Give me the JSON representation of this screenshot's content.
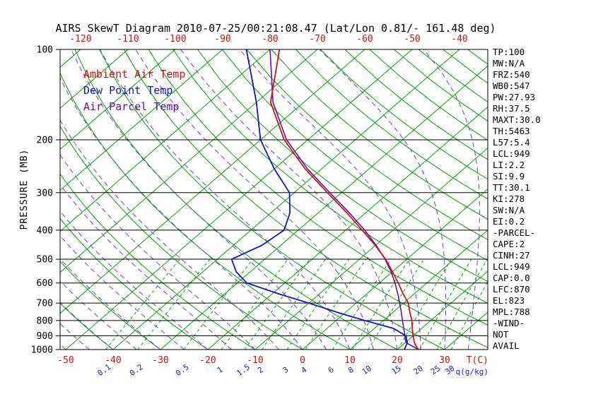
{
  "title": "AIRS SkewT Diagram 2010-07-25/00:21:08.47 (Lat/Lon 0.81/- 161.48 deg)",
  "legend": {
    "items": [
      {
        "label": "Ambient Air Temp",
        "color": "#d80f0f"
      },
      {
        "label": "Dew Point Temp",
        "color": "#1212cc"
      },
      {
        "label": "Air Parcel Temp",
        "color": "#5a10b8"
      }
    ]
  },
  "axes": {
    "y_label": "PRESSURE (MB)",
    "x_label_temp": "T(C)",
    "x_label_mixing": "q(g/kg)"
  },
  "stats": {
    "items": [
      "TP:100",
      "MW:N/A",
      "FRZ:540",
      "WB0:547",
      "PW:27.93",
      "RH:37.5",
      "MAXT:30.0",
      "TH:5463",
      "L57:5.4",
      "LCL:949",
      "LI:2.2",
      "SI:9.9",
      "TT:30.1",
      "KI:278",
      "SW:N/A",
      "EI:0.2",
      "-PARCEL-",
      "CAPE:2",
      "CINH:27",
      "LCL:949",
      "CAP:0.0",
      "LFC:870",
      "EL:823",
      "MPL:788",
      "-WIND-",
      "NOT",
      "AVAIL"
    ]
  },
  "colors": {
    "background": "#ffffff",
    "isotherm": "#00a400",
    "dry_adiabat": "#00a400",
    "moist_adiabat": "#7142c8",
    "mixing_ratio_line": "#00a400",
    "mixing_ratio_label": "#2020cc",
    "pressure_line": "#000000",
    "ambient": "#d80f0f",
    "dewpoint": "#1212cc",
    "parcel": "#5a10b8",
    "axis_text": "#000000"
  },
  "chart_data": {
    "type": "line",
    "title": "AIRS SkewT Diagram 2010-07-25/00:21:08.47 (Lat/Lon 0.81/- 161.48 deg)",
    "xlabel": "T(C)",
    "ylabel": "PRESSURE (MB)",
    "y_scale": "log",
    "ylim": [
      1000,
      100
    ],
    "xlim_temp_c": [
      -120,
      40
    ],
    "grid": "skew-t log-p",
    "legend_position": "upper-left-inside",
    "pressure_levels": [
      100,
      200,
      300,
      400,
      500,
      600,
      700,
      800,
      900,
      1000
    ],
    "top_temp_ticks": [
      -120,
      -110,
      -100,
      -90,
      -80,
      -70,
      -60,
      -50,
      -40
    ],
    "bottom_temp_ticks": [
      -50,
      -40,
      -30,
      -20,
      -10,
      0,
      10,
      20,
      30
    ],
    "mixing_ratios": [
      0.1,
      0.2,
      0.5,
      1,
      1.5,
      2,
      3,
      4,
      6,
      8,
      10,
      15,
      20,
      25,
      30
    ],
    "isotherms": {
      "min": -120,
      "max": 40,
      "step": 10
    },
    "dry_adiabats": {
      "min": -40,
      "max": 190,
      "step": 10
    },
    "moist_adiabats": {
      "min": -60,
      "max": 35,
      "step": 5
    },
    "series": [
      {
        "name": "Ambient Air Temp",
        "color": "#d80f0f",
        "points": [
          [
            1000,
            24.5
          ],
          [
            975,
            23.2
          ],
          [
            950,
            22.0
          ],
          [
            925,
            21.0
          ],
          [
            900,
            20.0
          ],
          [
            850,
            18.0
          ],
          [
            800,
            16.0
          ],
          [
            750,
            13.5
          ],
          [
            700,
            11.0
          ],
          [
            650,
            7.5
          ],
          [
            600,
            4.0
          ],
          [
            550,
            0.0
          ],
          [
            500,
            -4.5
          ],
          [
            450,
            -10.0
          ],
          [
            400,
            -16.5
          ],
          [
            350,
            -24.0
          ],
          [
            300,
            -33.0
          ],
          [
            250,
            -43.5
          ],
          [
            200,
            -55.0
          ],
          [
            150,
            -67.0
          ],
          [
            100,
            -78.0
          ]
        ]
      },
      {
        "name": "Dew Point Temp",
        "color": "#1212cc",
        "points": [
          [
            1000,
            21.5
          ],
          [
            975,
            21.0
          ],
          [
            950,
            20.5
          ],
          [
            925,
            19.5
          ],
          [
            900,
            18.5
          ],
          [
            850,
            14.0
          ],
          [
            800,
            6.0
          ],
          [
            750,
            -2.0
          ],
          [
            700,
            -10.0
          ],
          [
            650,
            -19.0
          ],
          [
            600,
            -28.0
          ],
          [
            550,
            -33.0
          ],
          [
            500,
            -37.0
          ],
          [
            450,
            -34.0
          ],
          [
            400,
            -33.0
          ],
          [
            350,
            -36.0
          ],
          [
            300,
            -41.0
          ],
          [
            250,
            -50.0
          ],
          [
            200,
            -60.0
          ],
          [
            150,
            -70.0
          ],
          [
            100,
            -85.0
          ]
        ]
      },
      {
        "name": "Air Parcel Temp",
        "color": "#5a10b8",
        "points": [
          [
            1000,
            24.5
          ],
          [
            950,
            20.3
          ],
          [
            925,
            19.2
          ],
          [
            900,
            18.3
          ],
          [
            850,
            16.2
          ],
          [
            800,
            14.0
          ],
          [
            750,
            11.7
          ],
          [
            700,
            9.2
          ],
          [
            650,
            6.4
          ],
          [
            600,
            3.3
          ],
          [
            550,
            -0.3
          ],
          [
            500,
            -4.6
          ],
          [
            450,
            -9.8
          ],
          [
            400,
            -16.0
          ],
          [
            350,
            -23.5
          ],
          [
            300,
            -32.5
          ],
          [
            250,
            -43.0
          ],
          [
            200,
            -54.5
          ],
          [
            150,
            -66.5
          ],
          [
            100,
            -80.0
          ]
        ]
      }
    ]
  }
}
